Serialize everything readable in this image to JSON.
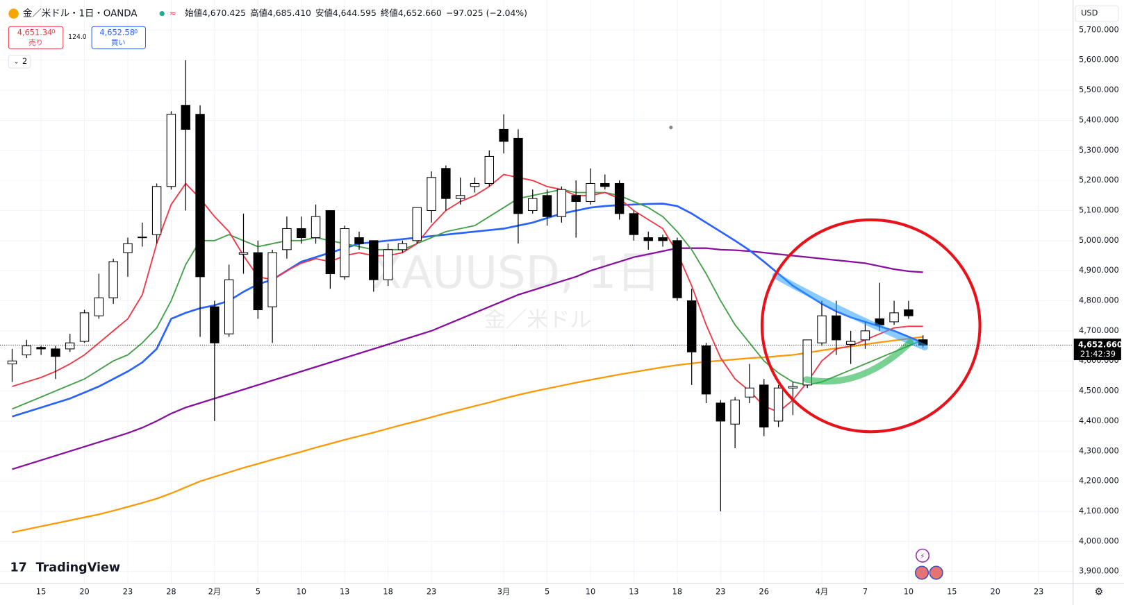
{
  "header": {
    "symbol": "金／米ドル・1日・OANDA",
    "ohlc": [
      {
        "label": "始値",
        "value": "4,670.425"
      },
      {
        "label": "高値",
        "value": "4,685.410"
      },
      {
        "label": "安値",
        "value": "4,644.595"
      },
      {
        "label": "終値",
        "value": "4,652.660"
      }
    ],
    "change": "−97.025 (−2.04%)",
    "sell": {
      "price": "4,651.34",
      "fraction": "0",
      "label": "売り"
    },
    "spread": "124.0",
    "buy": {
      "price": "4,652.58",
      "fraction": "0",
      "label": "買い"
    },
    "indicators": "2",
    "currency": "USD",
    "logo": "TradingView"
  },
  "chart_data": {
    "type": "candlestick",
    "watermark": "XAUUSD, 1日",
    "watermark_sub": "金／米ドル",
    "up_color": "#ffffff",
    "down_color": "#000000",
    "open": [
      4590,
      4620,
      4645,
      4640,
      4640,
      4665,
      4750,
      4810,
      4960,
      5010,
      5020,
      5180,
      5450,
      5420,
      4780,
      4690,
      4955,
      4960,
      4780,
      4970,
      5040,
      5010,
      5100,
      4880,
      5010,
      5000,
      4870,
      4970,
      5000,
      5100,
      5240,
      5140,
      5180,
      5190,
      5370,
      5340,
      5100,
      5150,
      5080,
      5150,
      5130,
      5190,
      5190,
      5090,
      5010,
      5010,
      5000,
      4800,
      4650,
      4460,
      4390,
      4480,
      4520,
      4400,
      4510,
      4520,
      4660,
      4750,
      4655,
      4670,
      4740,
      4730,
      4770,
      4670.425
    ],
    "high": [
      4640,
      4670,
      4650,
      4650,
      4690,
      4770,
      4890,
      4940,
      5010,
      5060,
      5190,
      5430,
      5600,
      5450,
      4800,
      4920,
      5090,
      5000,
      4970,
      5080,
      5080,
      5120,
      5100,
      5050,
      5030,
      5000,
      4990,
      5000,
      5110,
      5230,
      5250,
      5210,
      5210,
      5300,
      5420,
      5370,
      5170,
      5170,
      5180,
      5200,
      5240,
      5220,
      5200,
      5100,
      5030,
      5020,
      5010,
      4840,
      4660,
      4470,
      4480,
      4590,
      4540,
      4520,
      4530,
      4670,
      4800,
      4800,
      4700,
      4730,
      4860,
      4800,
      4800,
      4685.41
    ],
    "low": [
      4530,
      4610,
      4620,
      4540,
      4630,
      4660,
      4740,
      4790,
      4880,
      4980,
      4990,
      5170,
      5100,
      4680,
      4400,
      4680,
      4890,
      4740,
      4660,
      4940,
      4990,
      4990,
      4840,
      4870,
      4970,
      4830,
      4850,
      4960,
      4990,
      5060,
      5100,
      5120,
      5160,
      5180,
      5290,
      4990,
      5090,
      5050,
      5060,
      5010,
      5120,
      5170,
      5070,
      5000,
      4970,
      4980,
      4800,
      4520,
      4460,
      4100,
      4310,
      4460,
      4350,
      4380,
      4420,
      4510,
      4650,
      4620,
      4590,
      4640,
      4700,
      4720,
      4740,
      4644.595
    ],
    "close": [
      4600,
      4650,
      4640,
      4615,
      4660,
      4760,
      4810,
      4930,
      4990,
      5012,
      5180,
      5420,
      5370,
      4880,
      4660,
      4870,
      4960,
      4770,
      4960,
      5040,
      5010,
      5080,
      4890,
      5040,
      4990,
      4870,
      4970,
      4990,
      5110,
      5210,
      5140,
      5150,
      5190,
      5280,
      5330,
      5090,
      5140,
      5080,
      5170,
      5130,
      5190,
      5180,
      5090,
      5020,
      5000,
      5000,
      4810,
      4630,
      4490,
      4400,
      4470,
      4510,
      4380,
      4510,
      4515,
      4670,
      4750,
      4670,
      4665,
      4700,
      4720,
      4760,
      4750,
      4652.66
    ],
    "series": [
      {
        "color": "#ff9800",
        "values": [
          4030,
          4040,
          4050,
          4060,
          4070,
          4080,
          4090,
          4102,
          4115,
          4128,
          4142,
          4160,
          4180,
          4200,
          4215,
          4230,
          4245,
          4258,
          4272,
          4285,
          4298,
          4312,
          4325,
          4338,
          4350,
          4362,
          4375,
          4388,
          4400,
          4413,
          4426,
          4438,
          4450,
          4462,
          4475,
          4487,
          4498,
          4508,
          4518,
          4528,
          4537,
          4546,
          4555,
          4563,
          4571,
          4579,
          4586,
          4592,
          4597,
          4601,
          4605,
          4609,
          4612,
          4616,
          4620,
          4627,
          4635,
          4642,
          4648,
          4655,
          4662,
          4668,
          4674,
          4680
        ]
      },
      {
        "color": "#880e9f",
        "values": [
          4240,
          4255,
          4270,
          4285,
          4300,
          4315,
          4330,
          4345,
          4360,
          4378,
          4400,
          4425,
          4445,
          4460,
          4475,
          4490,
          4505,
          4520,
          4535,
          4550,
          4565,
          4580,
          4595,
          4610,
          4625,
          4640,
          4655,
          4670,
          4685,
          4700,
          4720,
          4740,
          4760,
          4780,
          4800,
          4820,
          4835,
          4850,
          4865,
          4880,
          4900,
          4915,
          4930,
          4945,
          4955,
          4965,
          4975,
          4975,
          4975,
          4970,
          4968,
          4965,
          4960,
          4955,
          4950,
          4945,
          4940,
          4935,
          4930,
          4925,
          4915,
          4905,
          4898,
          4895
        ]
      },
      {
        "color": "#2962ff",
        "values": [
          4415,
          4430,
          4445,
          4460,
          4475,
          4495,
          4515,
          4540,
          4565,
          4595,
          4640,
          4740,
          4760,
          4775,
          4785,
          4800,
          4830,
          4855,
          4870,
          4900,
          4930,
          4945,
          4960,
          4975,
          4990,
          4995,
          5000,
          5005,
          5010,
          5015,
          5020,
          5025,
          5030,
          5035,
          5040,
          5050,
          5060,
          5075,
          5090,
          5100,
          5110,
          5115,
          5118,
          5120,
          5122,
          5123,
          5115,
          5090,
          5060,
          5030,
          5000,
          4968,
          4930,
          4890,
          4850,
          4820,
          4790,
          4765,
          4745,
          4730,
          4715,
          4700,
          4680,
          4660
        ]
      },
      {
        "color": "#43a047",
        "values": [
          4440,
          4460,
          4480,
          4500,
          4520,
          4540,
          4570,
          4600,
          4620,
          4660,
          4710,
          4800,
          4920,
          5000,
          5000,
          5020,
          5000,
          4980,
          4990,
          5000,
          5000,
          5010,
          5000,
          4990,
          4980,
          4970,
          4970,
          4970,
          4990,
          5010,
          5030,
          5040,
          5050,
          5080,
          5110,
          5140,
          5150,
          5160,
          5170,
          5160,
          5160,
          5160,
          5150,
          5130,
          5110,
          5080,
          5030,
          4970,
          4890,
          4800,
          4720,
          4660,
          4600,
          4560,
          4530,
          4520,
          4530,
          4550,
          4570,
          4590,
          4610,
          4630,
          4650,
          4670
        ]
      },
      {
        "color": "#f23645",
        "values": [
          4515,
          4530,
          4545,
          4565,
          4590,
          4620,
          4660,
          4700,
          4740,
          4820,
          4990,
          5120,
          5190,
          5140,
          5080,
          5030,
          4950,
          4880,
          4870,
          4900,
          4925,
          4940,
          4930,
          4950,
          4960,
          4950,
          4950,
          4960,
          4990,
          5050,
          5100,
          5130,
          5150,
          5180,
          5220,
          5210,
          5200,
          5180,
          5170,
          5150,
          5150,
          5160,
          5140,
          5100,
          5070,
          5040,
          4960,
          4850,
          4720,
          4610,
          4540,
          4500,
          4450,
          4430,
          4470,
          4530,
          4600,
          4640,
          4650,
          4670,
          4690,
          4710,
          4715,
          4715
        ]
      }
    ],
    "ylim": [
      3860,
      5800
    ],
    "yticks": [
      {
        "value": 3900,
        "label": "3,900.000"
      },
      {
        "value": 4000,
        "label": "4,000.000"
      },
      {
        "value": 4100,
        "label": "4,100.000"
      },
      {
        "value": 4200,
        "label": "4,200.000"
      },
      {
        "value": 4300,
        "label": "4,300.000"
      },
      {
        "value": 4400,
        "label": "4,400.000"
      },
      {
        "value": 4500,
        "label": "4,500.000"
      },
      {
        "value": 4600,
        "label": "4,600.000"
      },
      {
        "value": 4700,
        "label": "4,700.000"
      },
      {
        "value": 4800,
        "label": "4,800.000"
      },
      {
        "value": 4900,
        "label": "4,900.000"
      },
      {
        "value": 5000,
        "label": "5,000.000"
      },
      {
        "value": 5100,
        "label": "5,100.000"
      },
      {
        "value": 5200,
        "label": "5,200.000"
      },
      {
        "value": 5300,
        "label": "5,300.000"
      },
      {
        "value": 5400,
        "label": "5,400.000"
      },
      {
        "value": 5500,
        "label": "5,500.000"
      },
      {
        "value": 5600,
        "label": "5,600.000"
      },
      {
        "value": 5700,
        "label": "5,700.000"
      }
    ],
    "xlim": [
      -0.84,
      73.38
    ],
    "xticks": [
      {
        "value": 2,
        "label": "15"
      },
      {
        "value": 5,
        "label": "20"
      },
      {
        "value": 8,
        "label": "23"
      },
      {
        "value": 11,
        "label": "28"
      },
      {
        "value": 14,
        "label": "2月"
      },
      {
        "value": 17,
        "label": "5"
      },
      {
        "value": 20,
        "label": "10"
      },
      {
        "value": 23,
        "label": "13"
      },
      {
        "value": 26,
        "label": "18"
      },
      {
        "value": 29,
        "label": "23"
      },
      {
        "value": 34,
        "label": "3月"
      },
      {
        "value": 37,
        "label": "5"
      },
      {
        "value": 40,
        "label": "10"
      },
      {
        "value": 43,
        "label": "13"
      },
      {
        "value": 46,
        "label": "18"
      },
      {
        "value": 49,
        "label": "23"
      },
      {
        "value": 52,
        "label": "26"
      },
      {
        "value": 56,
        "label": "4月"
      },
      {
        "value": 59,
        "label": "7"
      },
      {
        "value": 62,
        "label": "10"
      },
      {
        "value": 65,
        "label": "15"
      },
      {
        "value": 68,
        "label": "20"
      },
      {
        "value": 71,
        "label": "23"
      }
    ],
    "grid": true,
    "last_price": {
      "value": 4652.66,
      "label": "4,652.660"
    },
    "countdown": "21:42:39"
  }
}
